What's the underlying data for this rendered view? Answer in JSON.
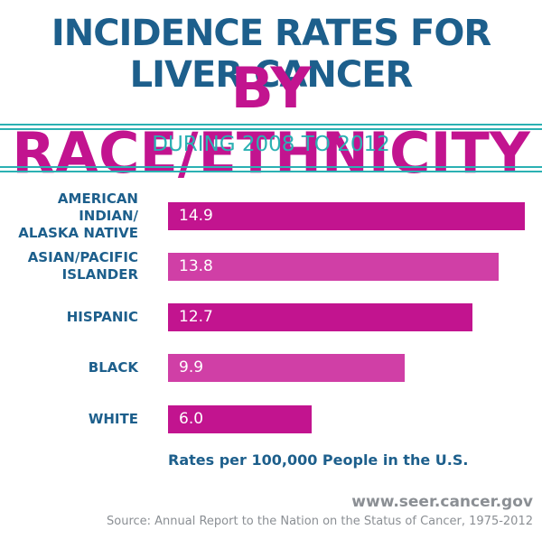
{
  "colors": {
    "navy": "#1d5f8c",
    "magenta": "#c2148f",
    "magenta_light": "#d03fa6",
    "teal": "#2bb1b3",
    "gray": "#8b8f94"
  },
  "header": {
    "title_line1": "INCIDENCE RATES FOR LIVER CANCER",
    "title_line2": "BY RACE/ETHNICITY",
    "subtitle": "DURING 2008 TO 2012"
  },
  "chart_data": {
    "type": "bar",
    "orientation": "horizontal",
    "categories": [
      [
        "AMERICAN INDIAN/",
        "ALASKA NATIVE"
      ],
      [
        "ASIAN/PACIFIC",
        "ISLANDER"
      ],
      [
        "HISPANIC"
      ],
      [
        "BLACK"
      ],
      [
        "WHITE"
      ]
    ],
    "values": [
      14.9,
      13.8,
      12.7,
      9.9,
      6.0
    ],
    "value_labels": [
      "14.9",
      "13.8",
      "12.7",
      "9.9",
      "6.0"
    ],
    "xlim": [
      0,
      14.9
    ],
    "grid": false,
    "legend": "none",
    "note": "Rates per 100,000 People in the U.S."
  },
  "footer": {
    "website": "www.seer.cancer.gov",
    "source": "Source: Annual Report to the Nation on the Status of Cancer, 1975-2012"
  }
}
